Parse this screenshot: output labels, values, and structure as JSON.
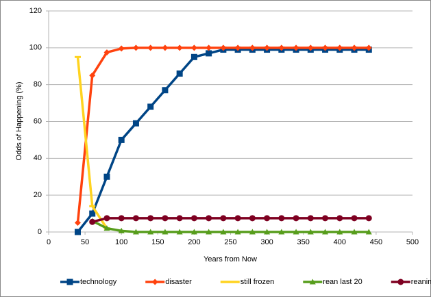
{
  "chart_data": {
    "type": "line",
    "x_label": "Years from Now",
    "y_label": "Odds of Happening (%)",
    "x": [
      40,
      60,
      80,
      100,
      120,
      140,
      160,
      180,
      200,
      220,
      240,
      260,
      280,
      300,
      320,
      340,
      360,
      380,
      400,
      420,
      440
    ],
    "series": [
      {
        "name": "technology",
        "color": "#004586",
        "marker": "square",
        "values": [
          0,
          10,
          30,
          50,
          59,
          68,
          77,
          86,
          95,
          97,
          99,
          99,
          99,
          99,
          99,
          99,
          99,
          99,
          99,
          99,
          99
        ]
      },
      {
        "name": "disaster",
        "color": "#ff420e",
        "marker": "diamond",
        "values": [
          5,
          85,
          97.5,
          99.6,
          100,
          100,
          100,
          100,
          100,
          100,
          100,
          100,
          100,
          100,
          100,
          100,
          100,
          100,
          100,
          100,
          100
        ]
      },
      {
        "name": "still frozen",
        "color": "#ffd320",
        "marker": "dash",
        "values": [
          95,
          14,
          2,
          null,
          null,
          null,
          null,
          null,
          null,
          null,
          null,
          null,
          null,
          null,
          null,
          null,
          null,
          null,
          null,
          null,
          null
        ]
      },
      {
        "name": "rean last 20",
        "color": "#579d1c",
        "marker": "triangle",
        "values": [
          null,
          6,
          2,
          0.6,
          0,
          0,
          0,
          0,
          0,
          0,
          0,
          0,
          0,
          0,
          0,
          0,
          0,
          0,
          0,
          0,
          0
        ]
      },
      {
        "name": "reanimated",
        "color": "#7e0021",
        "marker": "circle",
        "values": [
          null,
          5.5,
          7.5,
          7.5,
          7.5,
          7.5,
          7.5,
          7.5,
          7.5,
          7.5,
          7.5,
          7.5,
          7.5,
          7.5,
          7.5,
          7.5,
          7.5,
          7.5,
          7.5,
          7.5,
          7.5
        ]
      }
    ],
    "xlim": [
      0,
      500
    ],
    "xticks": [
      0,
      50,
      100,
      150,
      200,
      250,
      300,
      350,
      400,
      450,
      500
    ],
    "ylim": [
      0,
      120
    ],
    "yticks": [
      0,
      20,
      40,
      60,
      80,
      100,
      120
    ],
    "grid": true,
    "legend": "bottom"
  }
}
